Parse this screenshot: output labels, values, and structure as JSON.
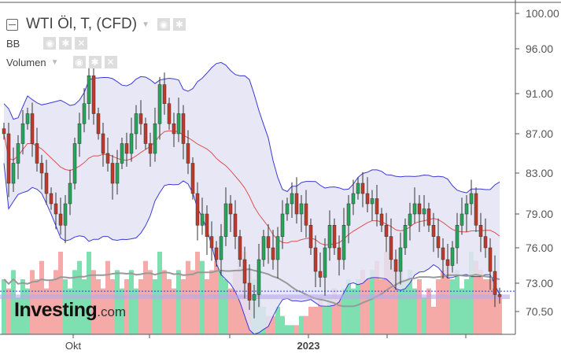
{
  "header": {
    "title": "WTI Öl, T, (CFD)",
    "indicators": [
      {
        "label": "BB"
      },
      {
        "label": "Volumen"
      }
    ]
  },
  "logo": {
    "main": "Investing",
    "suffix": ".com"
  },
  "colors": {
    "up": "#26a65b",
    "down": "#c0392b",
    "bb_fill": "#e3e3f3",
    "bb_band": "#3a3ad8",
    "bb_mid": "#e05050",
    "vol_up": "#7ee0b0",
    "vol_down": "#f6aaa8",
    "vol_ma": "#999999",
    "h_line": "#2b3fd0",
    "h_band": "#b8a8e8"
  },
  "chart_data": {
    "type": "candlestick",
    "y_ticks": [
      "100.00",
      "96.00",
      "91.00",
      "87.00",
      "83.00",
      "79.00",
      "76.00",
      "73.00",
      "70.50"
    ],
    "x_ticks": [
      "Okt",
      "",
      "",
      "2023",
      "",
      ""
    ],
    "close": [
      87,
      82,
      84,
      86,
      88,
      89,
      86,
      84,
      83,
      81,
      80,
      79,
      78,
      80,
      82,
      86,
      88,
      90,
      93,
      89,
      87,
      85,
      84,
      82,
      84,
      86,
      85,
      87,
      89,
      88,
      86,
      85,
      88,
      92,
      90,
      88,
      87,
      89,
      86,
      84,
      81,
      78,
      79,
      77,
      76,
      75,
      77,
      80,
      79,
      77,
      75,
      73,
      71.5,
      72,
      75,
      77,
      76,
      75,
      77,
      79,
      80,
      81,
      79,
      80,
      78,
      76,
      74,
      73.5,
      76,
      78,
      76,
      75,
      78,
      80,
      81,
      82,
      81,
      80,
      80.5,
      79,
      78,
      77,
      75,
      74,
      76,
      78,
      79,
      80,
      79,
      79.5,
      78,
      77,
      76,
      75,
      74.5,
      76,
      78,
      79,
      80,
      81,
      78,
      77,
      76,
      74,
      72,
      71.8
    ],
    "volume": [
      6,
      5,
      7,
      4,
      6,
      5,
      7,
      6,
      8,
      5,
      6,
      7,
      9,
      6,
      5,
      7,
      8,
      6,
      9,
      7,
      6,
      5,
      8,
      6,
      7,
      5,
      6,
      7,
      5,
      6,
      8,
      7,
      6,
      9,
      7,
      6,
      5,
      7,
      6,
      8,
      7,
      9,
      8,
      6,
      7,
      8,
      7,
      6,
      5,
      7,
      8,
      9,
      7,
      6,
      5,
      3,
      2,
      2,
      3,
      2,
      1,
      1,
      1,
      2,
      2,
      3,
      3,
      4,
      3,
      4,
      5,
      4,
      5,
      6,
      5,
      6,
      7,
      6,
      7,
      8,
      6,
      9,
      8,
      7,
      8,
      6,
      7,
      5,
      6,
      4,
      5,
      3,
      6,
      7,
      8,
      6,
      7,
      5,
      6,
      9,
      8,
      7,
      6,
      6,
      5,
      4
    ],
    "h_line_value": 72.3,
    "h_band_range": [
      71.6,
      72.0
    ],
    "grid": false
  }
}
